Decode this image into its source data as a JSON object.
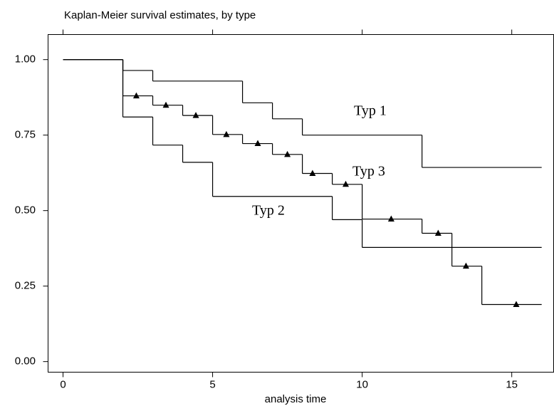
{
  "chart_data": {
    "type": "step",
    "title": "Kaplan-Meier survival estimates, by type",
    "x_label": "analysis time",
    "xlim": [
      -0.5,
      16.4
    ],
    "ylim": [
      -0.035,
      1.083
    ],
    "xticks": [
      0,
      5,
      10,
      15
    ],
    "yticks": [
      {
        "value": 0,
        "label": "0.00"
      },
      0.25,
      {
        "value": 0.5,
        "label": "0.50"
      },
      0.75,
      {
        "value": 1,
        "label": "1.00"
      }
    ],
    "grid": false,
    "series": [
      {
        "name": "Typ 1",
        "color": "#000000",
        "x": [
          0,
          2,
          3,
          6,
          7,
          8,
          12,
          16
        ],
        "values": [
          1,
          0.964,
          0.929,
          0.857,
          0.804,
          0.75,
          0.643,
          0.643
        ]
      },
      {
        "name": "Typ 2",
        "color": "#000000",
        "x": [
          0,
          2,
          3,
          4,
          5,
          9,
          10,
          16
        ],
        "values": [
          1,
          0.81,
          0.717,
          0.66,
          0.547,
          0.47,
          0.378,
          0.378
        ]
      },
      {
        "name": "Typ 3",
        "color": "#000000",
        "x": [
          0,
          2,
          3,
          4,
          5,
          6,
          7,
          8,
          9,
          10,
          12,
          13,
          14,
          16
        ],
        "values": [
          1,
          0.88,
          0.849,
          0.815,
          0.752,
          0.722,
          0.686,
          0.623,
          0.587,
          0.472,
          0.425,
          0.316,
          0.189,
          0.189
        ],
        "censored": {
          "x": [
            2.45,
            3.44,
            4.44,
            5.46,
            6.51,
            7.5,
            8.34,
            9.45,
            10.97,
            12.54,
            13.47,
            15.15
          ],
          "values": [
            0.88,
            0.849,
            0.815,
            0.752,
            0.722,
            0.686,
            0.623,
            0.587,
            0.472,
            0.425,
            0.316,
            0.189
          ]
        }
      }
    ]
  }
}
